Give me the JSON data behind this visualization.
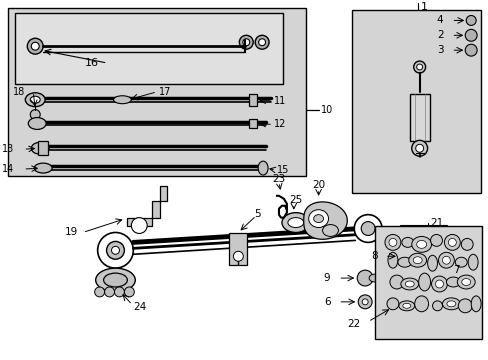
{
  "bg_color": "#ffffff",
  "lc": "#000000",
  "gray": "#d4d4d4",
  "fig_width": 4.89,
  "fig_height": 3.6,
  "dpi": 100
}
